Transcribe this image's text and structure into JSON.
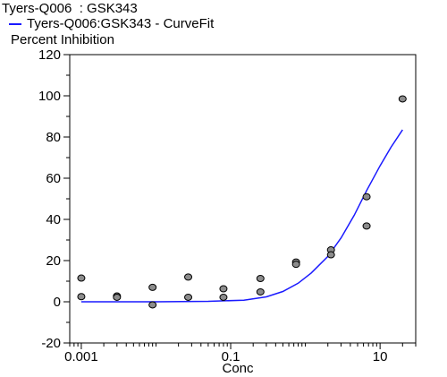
{
  "chart_data": {
    "type": "scatter",
    "title": "Tyers-Q006  : GSK343",
    "legend": [
      "Tyers-Q006:GSK343 - CurveFit"
    ],
    "ylabel": "Percent Inhibition",
    "xlabel": "Conc",
    "xscale": "log",
    "xlim": [
      0.0007,
      30
    ],
    "ylim": [
      -20,
      120
    ],
    "yticks": [
      -20,
      0,
      20,
      40,
      60,
      80,
      100,
      120
    ],
    "xticks": [
      0.001,
      0.1,
      10
    ],
    "xtick_labels": [
      "0.001",
      "0.1",
      "10"
    ],
    "grid": false,
    "points": [
      {
        "x": 0.001,
        "y": 11.5
      },
      {
        "x": 0.001,
        "y": 2.5
      },
      {
        "x": 0.003,
        "y": 2.8
      },
      {
        "x": 0.003,
        "y": 2.2
      },
      {
        "x": 0.009,
        "y": 7
      },
      {
        "x": 0.009,
        "y": -1.5
      },
      {
        "x": 0.027,
        "y": 12
      },
      {
        "x": 0.027,
        "y": 2.2
      },
      {
        "x": 0.08,
        "y": 6.3
      },
      {
        "x": 0.08,
        "y": 2.2
      },
      {
        "x": 0.25,
        "y": 11.3
      },
      {
        "x": 0.25,
        "y": 4.8
      },
      {
        "x": 0.75,
        "y": 19.3
      },
      {
        "x": 0.75,
        "y": 18.2
      },
      {
        "x": 2.2,
        "y": 25.2
      },
      {
        "x": 2.2,
        "y": 22.8
      },
      {
        "x": 6.6,
        "y": 51
      },
      {
        "x": 6.6,
        "y": 36.8
      },
      {
        "x": 20,
        "y": 98.5
      }
    ],
    "curve": [
      {
        "x": 0.001,
        "y": 0
      },
      {
        "x": 0.01,
        "y": 0
      },
      {
        "x": 0.05,
        "y": 0.2
      },
      {
        "x": 0.15,
        "y": 0.8
      },
      {
        "x": 0.3,
        "y": 2.4
      },
      {
        "x": 0.5,
        "y": 5
      },
      {
        "x": 0.8,
        "y": 9
      },
      {
        "x": 1.2,
        "y": 14
      },
      {
        "x": 2,
        "y": 22
      },
      {
        "x": 3,
        "y": 31
      },
      {
        "x": 4.5,
        "y": 42
      },
      {
        "x": 6.6,
        "y": 54
      },
      {
        "x": 10,
        "y": 66
      },
      {
        "x": 14,
        "y": 75
      },
      {
        "x": 20,
        "y": 83.5
      }
    ],
    "colors": {
      "curve": "#1a1aff",
      "point_fill": "#8c8c8c",
      "point_stroke": "#000000"
    }
  }
}
